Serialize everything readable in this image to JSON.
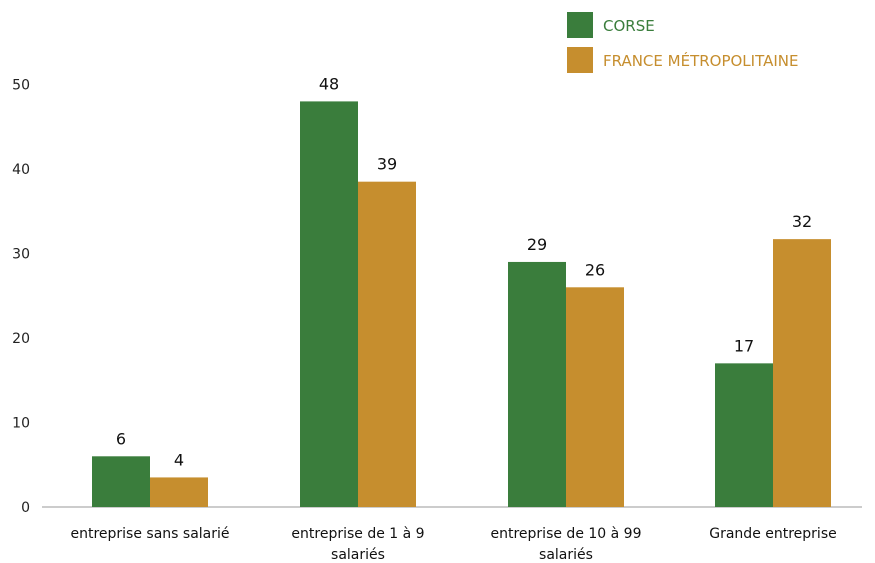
{
  "chart_data": {
    "type": "bar",
    "categories": [
      [
        "entreprise sans salarié"
      ],
      [
        "entreprise de 1 à 9",
        "salariés"
      ],
      [
        "entreprise de 10 à 99",
        "salariés"
      ],
      [
        "Grande entreprise"
      ]
    ],
    "series": [
      {
        "name": "CORSE",
        "color": "#3a7d3c",
        "values": [
          6,
          48,
          29,
          17
        ],
        "labels": [
          "6",
          "48",
          "29",
          "17"
        ]
      },
      {
        "name": "FRANCE MÉTROPOLITAINE",
        "color": "#c68e2e",
        "values": [
          3.5,
          38.5,
          26,
          31.7
        ],
        "labels": [
          "4",
          "39",
          "26",
          "32"
        ]
      }
    ],
    "yticks": [
      "0",
      "10",
      "20",
      "30",
      "40",
      "50"
    ],
    "ylim": [
      0,
      60
    ],
    "grid": false,
    "legend_position": "top-right"
  }
}
